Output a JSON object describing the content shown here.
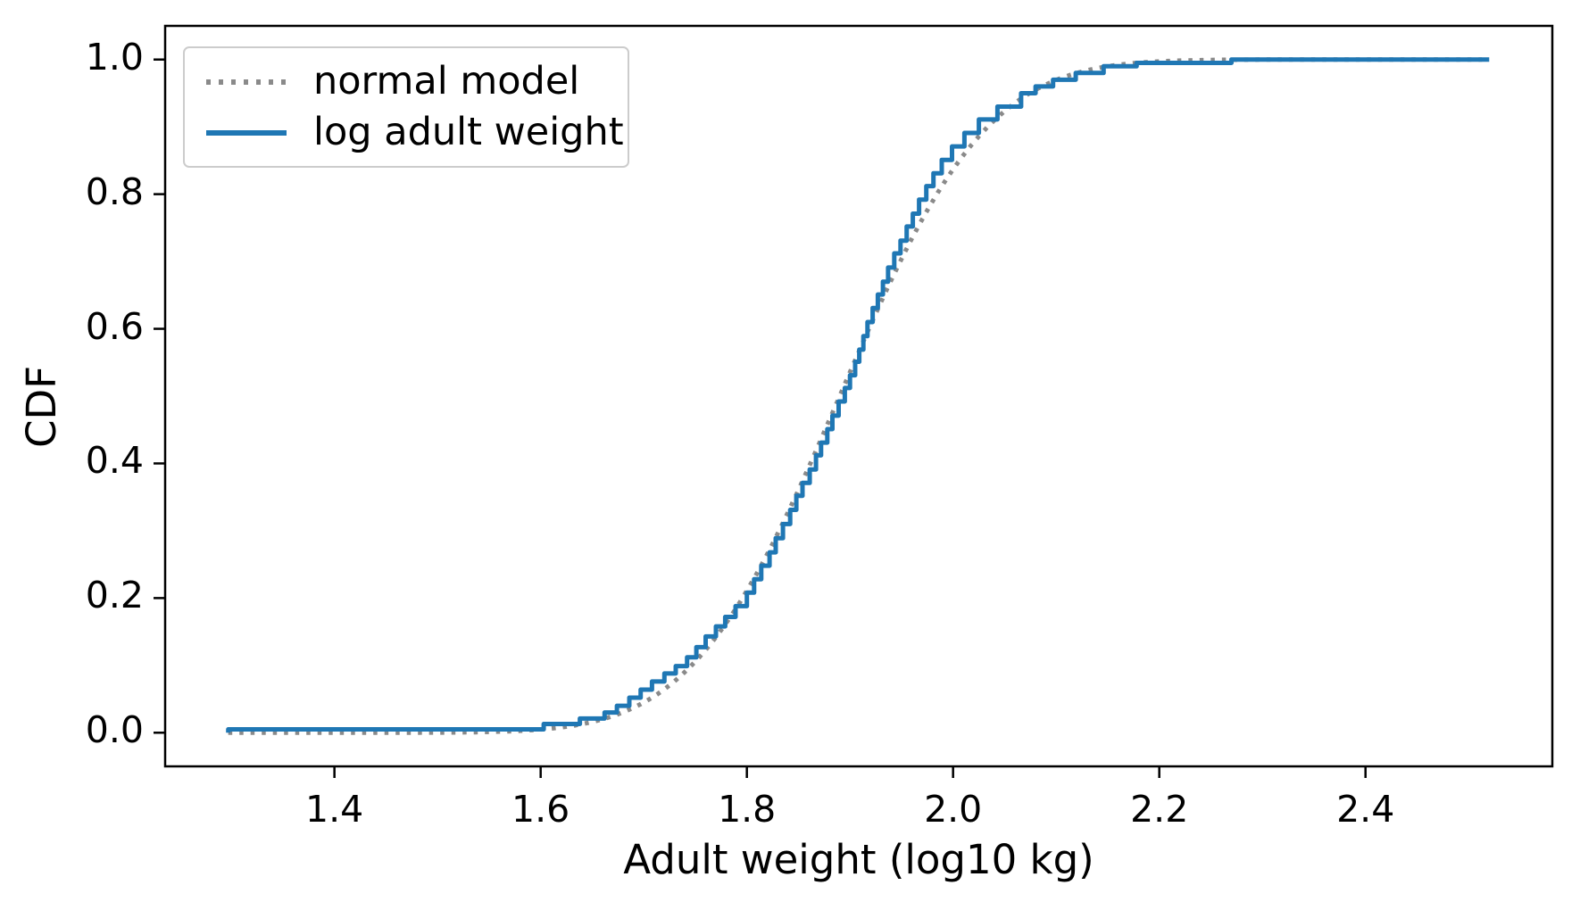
{
  "chart_data": {
    "type": "line",
    "subtype": "cdf_comparison",
    "title": "",
    "xlabel": "Adult weight (log10 kg)",
    "ylabel": "CDF",
    "xlim": [
      1.2358,
      2.5812
    ],
    "ylim": [
      -0.05,
      1.05
    ],
    "grid": false,
    "frame_color": "#000000",
    "xticks": {
      "values": [
        1.4,
        1.6,
        1.8,
        2.0,
        2.2,
        2.4
      ],
      "labels": [
        "1.4",
        "1.6",
        "1.8",
        "2.0",
        "2.2",
        "2.4"
      ]
    },
    "yticks": {
      "values": [
        0.0,
        0.2,
        0.4,
        0.6,
        0.8,
        1.0
      ],
      "labels": [
        "0.0",
        "0.2",
        "0.4",
        "0.6",
        "0.8",
        "1.0"
      ]
    },
    "legend": {
      "position": "upper left",
      "entries": [
        {
          "label": "normal model",
          "color": "#8a8a8a",
          "linestyle": "dotted"
        },
        {
          "label": "log adult weight",
          "color": "#1f77b4",
          "linestyle": "solid"
        }
      ]
    },
    "series": [
      {
        "name": "normal model",
        "kind": "normal_cdf",
        "mu": 1.89,
        "sigma": 0.112,
        "x_range": [
          1.297,
          2.52
        ],
        "color": "#8a8a8a",
        "linestyle": "dotted",
        "linewidth": 5
      },
      {
        "name": "log adult weight",
        "kind": "ecdf_steps",
        "color": "#1f77b4",
        "linestyle": "solid",
        "linewidth": 5,
        "x_start": 1.297,
        "x_end": 2.52,
        "points": [
          [
            1.297,
            0.005
          ],
          [
            1.603,
            0.013
          ],
          [
            1.638,
            0.021
          ],
          [
            1.662,
            0.03
          ],
          [
            1.674,
            0.04
          ],
          [
            1.686,
            0.052
          ],
          [
            1.697,
            0.064
          ],
          [
            1.708,
            0.076
          ],
          [
            1.72,
            0.088
          ],
          [
            1.731,
            0.099
          ],
          [
            1.742,
            0.112
          ],
          [
            1.751,
            0.127
          ],
          [
            1.76,
            0.143
          ],
          [
            1.77,
            0.158
          ],
          [
            1.779,
            0.172
          ],
          [
            1.789,
            0.188
          ],
          [
            1.8,
            0.208
          ],
          [
            1.807,
            0.228
          ],
          [
            1.814,
            0.248
          ],
          [
            1.822,
            0.268
          ],
          [
            1.828,
            0.289
          ],
          [
            1.835,
            0.31
          ],
          [
            1.842,
            0.331
          ],
          [
            1.848,
            0.352
          ],
          [
            1.854,
            0.371
          ],
          [
            1.861,
            0.391
          ],
          [
            1.867,
            0.412
          ],
          [
            1.872,
            0.431
          ],
          [
            1.878,
            0.451
          ],
          [
            1.883,
            0.471
          ],
          [
            1.889,
            0.492
          ],
          [
            1.895,
            0.512
          ],
          [
            1.9,
            0.531
          ],
          [
            1.905,
            0.551
          ],
          [
            1.909,
            0.569
          ],
          [
            1.913,
            0.589
          ],
          [
            1.917,
            0.61
          ],
          [
            1.922,
            0.631
          ],
          [
            1.927,
            0.651
          ],
          [
            1.932,
            0.67
          ],
          [
            1.937,
            0.691
          ],
          [
            1.943,
            0.712
          ],
          [
            1.949,
            0.731
          ],
          [
            1.955,
            0.752
          ],
          [
            1.961,
            0.771
          ],
          [
            1.967,
            0.792
          ],
          [
            1.974,
            0.812
          ],
          [
            1.981,
            0.831
          ],
          [
            1.989,
            0.851
          ],
          [
            1.999,
            0.871
          ],
          [
            2.011,
            0.891
          ],
          [
            2.025,
            0.911
          ],
          [
            2.043,
            0.93
          ],
          [
            2.066,
            0.95
          ],
          [
            2.08,
            0.96
          ],
          [
            2.097,
            0.97
          ],
          [
            2.119,
            0.98
          ],
          [
            2.146,
            0.99
          ],
          [
            2.178,
            0.995
          ],
          [
            2.27,
            1.0
          ]
        ]
      }
    ]
  }
}
